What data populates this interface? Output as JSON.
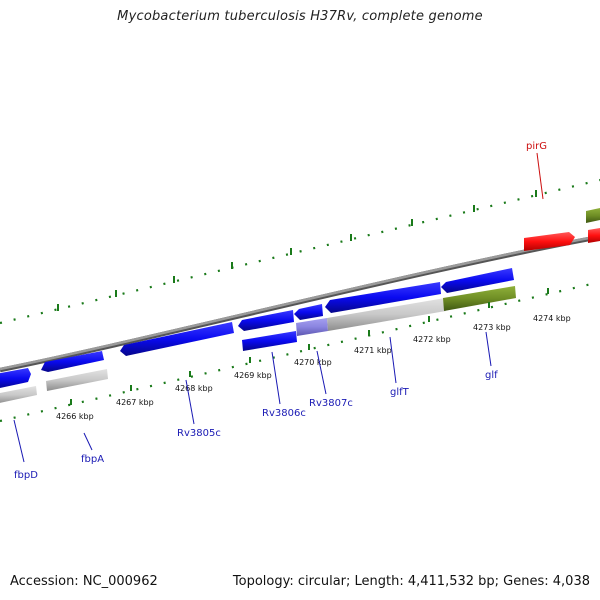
{
  "header": {
    "title": "Mycobacterium tuberculosis H37Rv, complete genome"
  },
  "footer": {
    "accession": "Accession: NC_000962",
    "summary": "Topology: circular; Length: 4,411,532 bp; Genes: 4,038"
  },
  "colors": {
    "gene_blue": "#1010e6",
    "gene_grey": "#c4c4c4",
    "gene_olive": "#6f8e25",
    "gene_red": "#ff1a1a",
    "gene_lavender": "#8a84e0",
    "tick_green": "#1a7a1a",
    "backbone": "#8a8a8a",
    "label_blue": "#1a1ab4",
    "label_red": "#cc1010"
  },
  "scale_ticks": [
    {
      "label": "4266 kbp"
    },
    {
      "label": "4267 kbp"
    },
    {
      "label": "4268 kbp"
    },
    {
      "label": "4269 kbp"
    },
    {
      "label": "4270 kbp"
    },
    {
      "label": "4271 kbp"
    },
    {
      "label": "4272 kbp"
    },
    {
      "label": "4273 kbp"
    },
    {
      "label": "4274 kbp"
    }
  ],
  "gene_labels": [
    {
      "name": "fbpD",
      "color": "label_blue"
    },
    {
      "name": "fbpA",
      "color": "label_blue"
    },
    {
      "name": "Rv3805c",
      "color": "label_blue"
    },
    {
      "name": "Rv3806c",
      "color": "label_blue"
    },
    {
      "name": "Rv3807c",
      "color": "label_blue"
    },
    {
      "name": "glfT",
      "color": "label_blue"
    },
    {
      "name": "glf",
      "color": "label_blue"
    },
    {
      "name": "pirG",
      "color": "label_red"
    }
  ]
}
